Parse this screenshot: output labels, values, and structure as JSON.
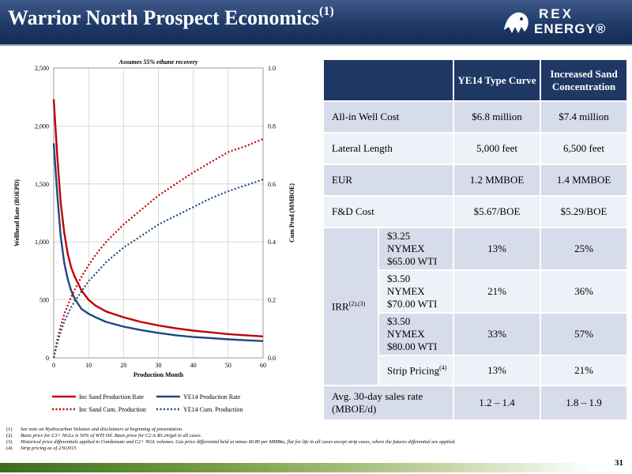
{
  "header": {
    "title": "Warrior North Prospect Economics",
    "title_sup": "(1)",
    "logo_line1": "REX",
    "logo_line2": "ENERGY®"
  },
  "chart_data": {
    "type": "line",
    "title": "Assumes 55% ethane recovery",
    "xlabel": "Production Month",
    "ylabel": "Wellhead Rate (BOEPD)",
    "y2label": "Cum Prod (MMBOE)",
    "xlim": [
      0,
      60
    ],
    "ylim": [
      0,
      2500
    ],
    "y2lim": [
      0,
      1.0
    ],
    "xticks": [
      "0",
      "10",
      "20",
      "30",
      "40",
      "50",
      "60"
    ],
    "yticks": [
      "0",
      "500",
      "1,000",
      "1,500",
      "2,000",
      "2,500"
    ],
    "y2ticks": [
      "0.0",
      "0.2",
      "0.4",
      "0.6",
      "0.8",
      "1.0"
    ],
    "grid": true,
    "legend_position": "bottom",
    "x": [
      0,
      1,
      2,
      3,
      4,
      5,
      6,
      8,
      10,
      12,
      15,
      20,
      25,
      30,
      35,
      40,
      45,
      50,
      55,
      60
    ],
    "series": [
      {
        "name": "Inc Sand Production Rate",
        "axis": "left",
        "color": "#c00000",
        "dash": "solid",
        "values": [
          2230,
          1750,
          1340,
          1080,
          900,
          780,
          700,
          580,
          500,
          450,
          400,
          350,
          310,
          280,
          255,
          235,
          220,
          205,
          195,
          185
        ]
      },
      {
        "name": "YE14 Production Rate",
        "axis": "left",
        "color": "#1f497d",
        "dash": "solid",
        "values": [
          1850,
          1420,
          1050,
          820,
          680,
          580,
          510,
          420,
          380,
          350,
          310,
          270,
          240,
          215,
          195,
          180,
          170,
          160,
          152,
          145
        ]
      },
      {
        "name": "Inc Sand Cum. Production",
        "axis": "right",
        "color": "#c00000",
        "dash": "dotted",
        "values": [
          0.0,
          0.06,
          0.11,
          0.15,
          0.18,
          0.21,
          0.235,
          0.28,
          0.32,
          0.355,
          0.4,
          0.46,
          0.51,
          0.56,
          0.6,
          0.64,
          0.675,
          0.71,
          0.73,
          0.755
        ]
      },
      {
        "name": "YE14 Cum. Production",
        "axis": "right",
        "color": "#1f497d",
        "dash": "dotted",
        "values": [
          0.0,
          0.05,
          0.09,
          0.125,
          0.15,
          0.175,
          0.195,
          0.23,
          0.265,
          0.29,
          0.33,
          0.38,
          0.42,
          0.46,
          0.49,
          0.52,
          0.55,
          0.575,
          0.595,
          0.615
        ]
      }
    ]
  },
  "table": {
    "col1_header": "YE14 Type Curve",
    "col2_header": "Increased Sand Concentration",
    "rows": [
      {
        "label": "All-in Well Cost",
        "c1": "$6.8 million",
        "c2": "$7.4 million"
      },
      {
        "label": "Lateral Length",
        "c1": "5,000 feet",
        "c2": "6,500 feet"
      },
      {
        "label": "EUR",
        "c1": "1.2 MMBOE",
        "c2": "1.4 MMBOE"
      },
      {
        "label": "F&D Cost",
        "c1": "$5.67/BOE",
        "c2": "$5.29/BOE"
      }
    ],
    "irr_label": "IRR",
    "irr_sup": "(2),(3)",
    "irr_rows": [
      {
        "line1": "$3.25 NYMEX",
        "line2": "$65.00 WTI",
        "c1": "13%",
        "c2": "25%"
      },
      {
        "line1": "$3.50 NYMEX",
        "line2": "$70.00 WTI",
        "c1": "21%",
        "c2": "36%"
      },
      {
        "line1": "$3.50 NYMEX",
        "line2": "$80.00 WTI",
        "c1": "33%",
        "c2": "57%"
      }
    ],
    "strip": {
      "label": "Strip Pricing",
      "sup": "(4)",
      "c1": "13%",
      "c2": "21%"
    },
    "last": {
      "line1": "Avg. 30-day sales rate",
      "line2": "(MBOE/d)",
      "c1": "1.2 – 1.4",
      "c2": "1.8 – 1.9"
    }
  },
  "footnotes": [
    {
      "num": "(1)",
      "text": "See note on Hydrocarbon Volumes and disclaimers at beginning of presentation."
    },
    {
      "num": "(2)",
      "text": "Basis price for C3+ NGLs is 50% of WTI Oil. Basis price for C2 is $0.24/gal in all cases."
    },
    {
      "num": "(3)",
      "text": "Historical price differentials applied to Condensate and C2+ NGL volumes. Gas price differential held at minus $0.80 per MMBtu, flat for life in all cases except strip cases, where the futures differential are applied."
    },
    {
      "num": "(4)",
      "text": "Strip pricing as of 2/9/2015"
    }
  ],
  "page_number": "31"
}
